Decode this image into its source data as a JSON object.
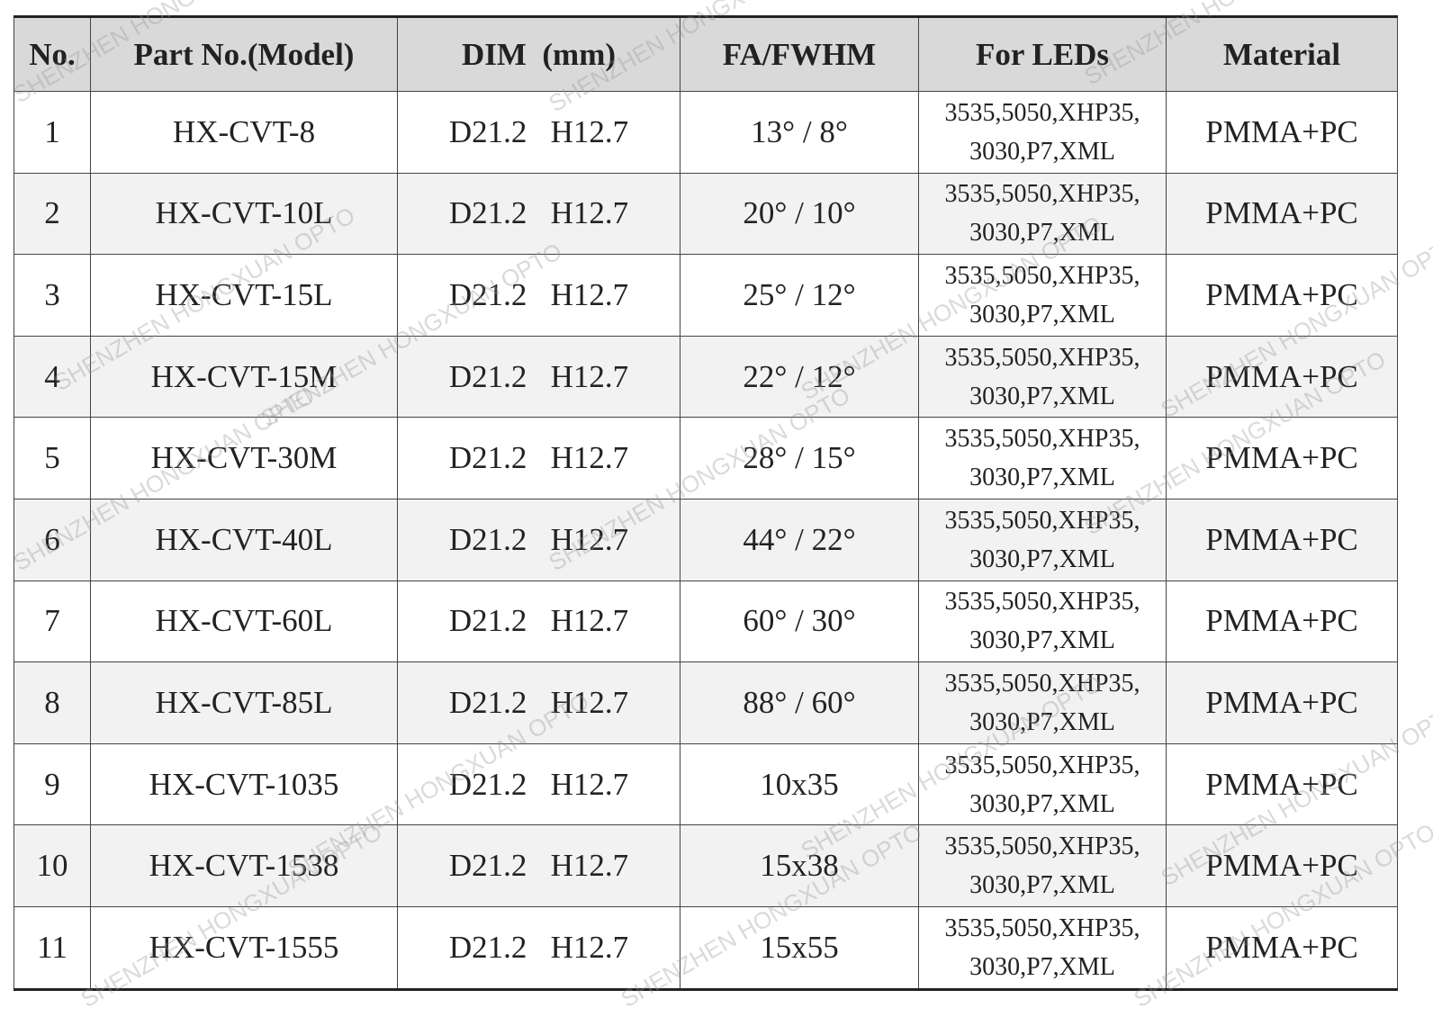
{
  "watermark": "SHENZHEN HONGXUAN OPTO",
  "table": {
    "header": [
      "No.",
      "Part No.(Model)",
      "DIM  (mm)",
      "FA/FWHM",
      "For LEDs",
      "Material"
    ],
    "rows": [
      [
        "1",
        "HX-CVT-8",
        "D21.2   H12.7",
        "13° / 8°",
        [
          "3535,5050,XHP35,",
          "3030,P7,XML"
        ],
        "PMMA+PC"
      ],
      [
        "2",
        "HX-CVT-10L",
        "D21.2   H12.7",
        "20° / 10°",
        [
          "3535,5050,XHP35,",
          "3030,P7,XML"
        ],
        "PMMA+PC"
      ],
      [
        "3",
        "HX-CVT-15L",
        "D21.2   H12.7",
        "25° / 12°",
        [
          "3535,5050,XHP35,",
          "3030,P7,XML"
        ],
        "PMMA+PC"
      ],
      [
        "4",
        "HX-CVT-15M",
        "D21.2   H12.7",
        "22° / 12°",
        [
          "3535,5050,XHP35,",
          "3030,P7,XML"
        ],
        "PMMA+PC"
      ],
      [
        "5",
        "HX-CVT-30M",
        "D21.2   H12.7",
        "28° / 15°",
        [
          "3535,5050,XHP35,",
          "3030,P7,XML"
        ],
        "PMMA+PC"
      ],
      [
        "6",
        "HX-CVT-40L",
        "D21.2   H12.7",
        "44° / 22°",
        [
          "3535,5050,XHP35,",
          "3030,P7,XML"
        ],
        "PMMA+PC"
      ],
      [
        "7",
        "HX-CVT-60L",
        "D21.2   H12.7",
        "60° / 30°",
        [
          "3535,5050,XHP35,",
          "3030,P7,XML"
        ],
        "PMMA+PC"
      ],
      [
        "8",
        "HX-CVT-85L",
        "D21.2   H12.7",
        "88° / 60°",
        [
          "3535,5050,XHP35,",
          "3030,P7,XML"
        ],
        "PMMA+PC"
      ],
      [
        "9",
        "HX-CVT-1035",
        "D21.2   H12.7",
        "10x35",
        [
          "3535,5050,XHP35,",
          "3030,P7,XML"
        ],
        "PMMA+PC"
      ],
      [
        "10",
        "HX-CVT-1538",
        "D21.2   H12.7",
        "15x38",
        [
          "3535,5050,XHP35,",
          "3030,P7,XML"
        ],
        "PMMA+PC"
      ],
      [
        "11",
        "HX-CVT-1555",
        "D21.2   H12.7",
        "15x55",
        [
          "3535,5050,XHP35,",
          "3030,P7,XML"
        ],
        "PMMA+PC"
      ]
    ]
  }
}
